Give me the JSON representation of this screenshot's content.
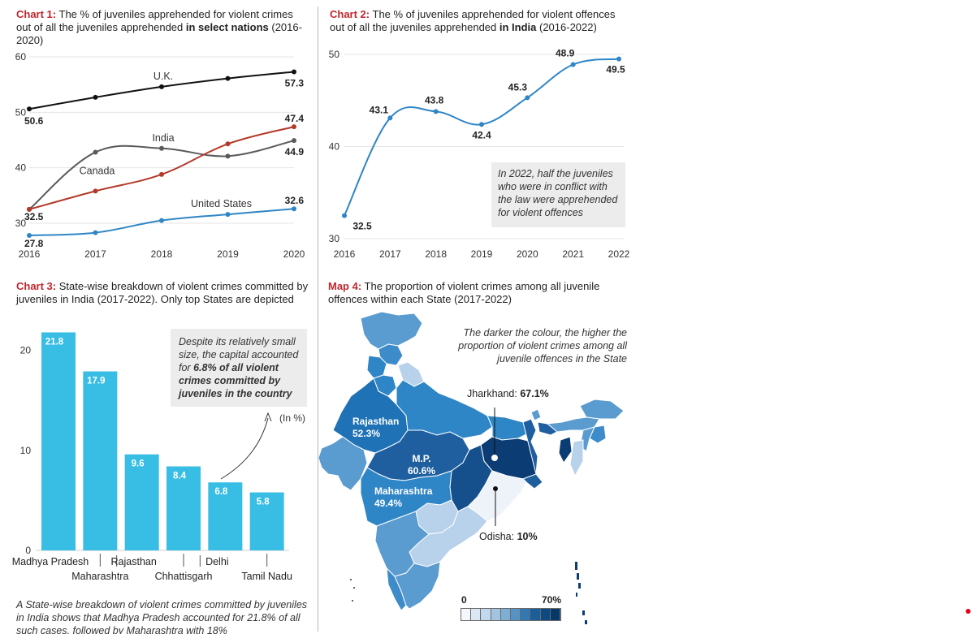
{
  "chart1": {
    "title_lead": "Chart 1:",
    "title_text": " The % of juveniles apprehended for violent crimes out of all the juveniles apprehended ",
    "title_bold": "in select nations",
    "title_end": " (2016-2020)"
  },
  "chart2": {
    "title_lead": "Chart 2:",
    "title_text": " The % of juveniles apprehended for violent offences out of all the juveniles apprehended ",
    "title_bold": "in India",
    "title_end": " (2016-2022)",
    "note": "In 2022, half the juveniles who were in conflict with the law were apprehended for violent offences"
  },
  "chart3": {
    "title_lead": "Chart 3:",
    "title_text": " State-wise breakdown of violent crimes committed by juveniles in India (2017-2022). Only top States are depicted",
    "note_plain": "Despite its relatively small size, the capital accounted for ",
    "note_bold": "6.8% of all violent crimes committed by juveniles in the country",
    "unit": "(In %)",
    "caption": "A State-wise breakdown of violent crimes committed by juveniles in India shows that Madhya Pradesh accounted for 21.8% of all such cases, followed by Maharashtra with 18%"
  },
  "map4": {
    "title_lead": "Map 4:",
    "title_text": " The proportion of violent crimes among all juvenile offences within each State (2017-2022)",
    "legend_note": "The darker the colour, the higher the proportion of violent crimes among all juvenile offences in the State",
    "labels": {
      "jharkhand_name": "Jharkhand: ",
      "jharkhand_value": "67.1%",
      "odisha_name": "Odisha: ",
      "odisha_value": "10%",
      "rajasthan_name": "Rajasthan",
      "rajasthan_value": "52.3%",
      "mp_name": "M.P.",
      "mp_value": "60.6%",
      "maharashtra_name": "Maharashtra",
      "maharashtra_value": "49.4%"
    },
    "scale_min": "0",
    "scale_max": "70%",
    "scale_colors": [
      "#f3f6fb",
      "#dbe7f3",
      "#c2d8ec",
      "#a3c3e0",
      "#7daed4",
      "#5693c4",
      "#3378b1",
      "#1c5e99",
      "#0d4a80",
      "#07386a"
    ],
    "colors": {
      "lightest": "#eef3f9",
      "light": "#b7d2ea",
      "mid": "#5a9bd0",
      "base": "#2f86c6",
      "dark": "#1f5fa0",
      "darkest": "#0b3c73"
    }
  },
  "chart_data": [
    {
      "type": "line",
      "x": [
        2016,
        2017,
        2018,
        2019,
        2020
      ],
      "ylim": [
        30,
        60
      ],
      "yticks": [
        30,
        40,
        50,
        60
      ],
      "series": [
        {
          "name": "U.K.",
          "color": "#111111",
          "values": [
            50.6,
            52.7,
            54.6,
            56.1,
            57.3
          ],
          "labels": {
            "first": "50.6",
            "last": "57.3"
          }
        },
        {
          "name": "India",
          "color": "#5a5a5a",
          "values": [
            32.5,
            42.8,
            43.5,
            42.1,
            44.9
          ],
          "labels": {
            "first": "",
            "last": "44.9"
          }
        },
        {
          "name": "Canada",
          "color": "#b23a2a",
          "values": [
            32.5,
            35.8,
            38.8,
            44.3,
            47.4
          ],
          "labels": {
            "first": "32.5",
            "last": "47.4"
          }
        },
        {
          "name": "United States",
          "color": "#2f86c6",
          "values": [
            27.8,
            28.3,
            30.5,
            31.6,
            32.6
          ],
          "labels": {
            "first": "27.8",
            "last": "32.6"
          }
        }
      ]
    },
    {
      "type": "line",
      "x": [
        2016,
        2017,
        2018,
        2019,
        2020,
        2021,
        2022
      ],
      "values": [
        32.5,
        43.1,
        43.8,
        42.4,
        45.3,
        48.9,
        49.5
      ],
      "value_labels": [
        "32.5",
        "43.1",
        "43.8",
        "42.4",
        "45.3",
        "48.9",
        "49.5"
      ],
      "ylim": [
        30,
        50
      ],
      "yticks": [
        30,
        40,
        50
      ],
      "color": "#2f86c6"
    },
    {
      "type": "bar",
      "categories": [
        "Madhya Pradesh",
        "Maharashtra",
        "Rajasthan",
        "Chhattisgarh",
        "Delhi",
        "Tamil Nadu"
      ],
      "values": [
        21.8,
        17.9,
        9.6,
        8.4,
        6.8,
        5.8
      ],
      "value_labels": [
        "21.8",
        "17.9",
        "9.6",
        "8.4",
        "6.8",
        "5.8"
      ],
      "ylim": [
        0,
        22
      ],
      "yticks": [
        0,
        10,
        20
      ],
      "color": "#38bde4"
    }
  ]
}
